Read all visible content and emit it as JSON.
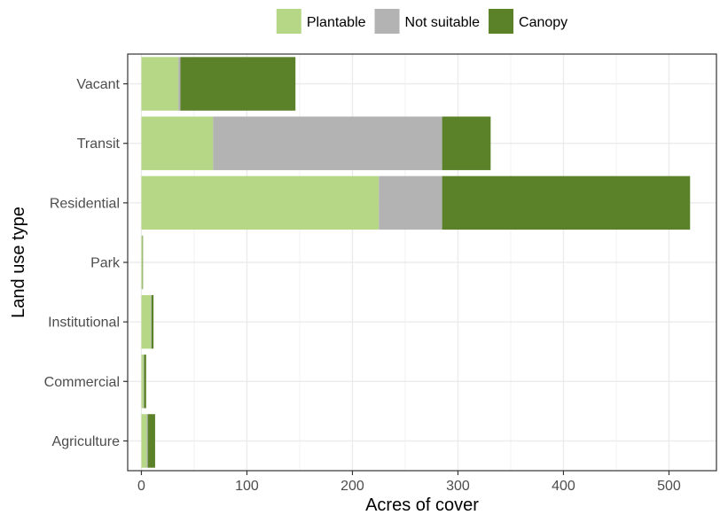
{
  "chart_data": {
    "type": "bar",
    "orientation": "horizontal",
    "stacked": true,
    "xlabel": "Acres of cover",
    "ylabel": "Land use type",
    "xlim": [
      -13,
      545
    ],
    "xticks": [
      0,
      100,
      200,
      300,
      400,
      500
    ],
    "grid": true,
    "legend_position": "top",
    "categories": [
      "Agriculture",
      "Commercial",
      "Institutional",
      "Park",
      "Residential",
      "Transit",
      "Vacant"
    ],
    "series": [
      {
        "name": "Plantable",
        "color": "#b6d886",
        "values": [
          5,
          2,
          9,
          1,
          225,
          68,
          35
        ]
      },
      {
        "name": "Not suitable",
        "color": "#b3b3b3",
        "values": [
          1,
          0.5,
          0.5,
          0,
          60,
          217,
          2
        ]
      },
      {
        "name": "Canopy",
        "color": "#5b8229",
        "values": [
          7,
          2,
          2,
          0.5,
          235,
          46,
          109
        ]
      }
    ]
  }
}
